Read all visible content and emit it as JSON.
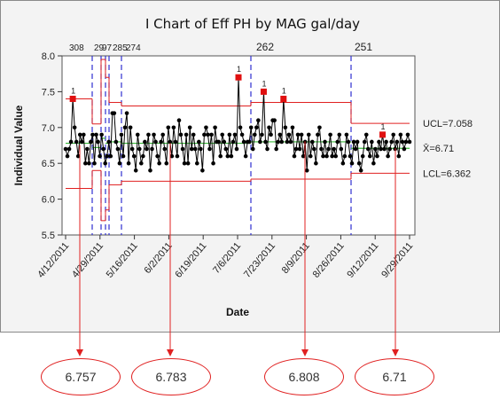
{
  "chart_data": {
    "type": "line",
    "title": "I Chart of Eff PH by MAG gal/day",
    "xlabel": "Date",
    "ylabel": "Individual Value",
    "ylim": [
      5.5,
      8.0
    ],
    "yticks": [
      "5.5",
      "6.0",
      "6.5",
      "7.0",
      "7.5",
      "8.0"
    ],
    "xticks": [
      "4/12/2011",
      "4/29/2011",
      "5/16/2011",
      "6/2/2011",
      "6/19/2011",
      "7/6/2011",
      "7/23/2011",
      "8/9/2011",
      "8/26/2011",
      "9/12/2011",
      "9/29/2011"
    ],
    "stage_labels": [
      "308",
      "29",
      "97",
      "285",
      "274",
      "262",
      "251"
    ],
    "grid": false,
    "center_line": "X̄=6.71",
    "ucl": "UCL=7.058",
    "lcl": "LCL=6.362",
    "flag": "1",
    "series": [
      {
        "values": [
          6.7,
          6.6,
          6.7,
          6.8,
          7.4,
          7.0,
          6.8,
          6.6,
          6.9,
          6.8,
          6.9,
          6.5,
          6.7,
          6.5,
          6.8,
          6.9,
          6.5,
          6.9,
          6.8,
          6.6,
          6.9,
          6.7,
          6.5,
          6.6,
          6.8,
          6.6,
          7.2,
          7.2,
          6.8,
          6.7,
          6.5,
          6.9,
          6.6,
          7.0,
          7.2,
          6.5,
          7.0,
          6.7,
          6.6,
          6.4,
          6.9,
          6.7,
          6.5,
          6.6,
          6.8,
          6.7,
          6.9,
          6.4,
          6.7,
          6.9,
          6.8,
          6.6,
          6.5,
          6.8,
          6.9,
          6.7,
          6.5,
          7.0,
          6.8,
          6.6,
          7.0,
          6.8,
          6.6,
          7.1,
          6.9,
          6.7,
          6.5,
          6.9,
          6.5,
          7.0,
          6.7,
          6.9,
          6.7,
          6.5,
          6.8,
          6.7,
          6.4,
          6.9,
          7.0,
          6.9,
          6.7,
          6.9,
          6.5,
          7.0,
          6.8,
          6.8,
          6.6,
          6.9,
          6.8,
          6.7,
          6.6,
          6.9,
          6.6,
          6.8,
          6.9,
          6.7,
          7.7,
          7.0,
          6.9,
          6.8,
          6.6,
          6.8,
          6.8,
          7.0,
          6.7,
          6.9,
          7.0,
          7.1,
          6.8,
          6.9,
          7.5,
          6.8,
          6.7,
          7.0,
          6.9,
          7.1,
          7.1,
          6.7,
          6.8,
          6.9,
          6.8,
          7.4,
          7.0,
          6.8,
          6.9,
          6.8,
          7.0,
          6.6,
          6.7,
          6.9,
          6.7,
          6.9,
          6.6,
          6.8,
          6.4,
          6.9,
          6.6,
          6.8,
          6.7,
          6.5,
          6.9,
          7.0,
          6.7,
          6.6,
          6.8,
          6.6,
          6.7,
          6.9,
          6.6,
          6.7,
          6.6,
          6.8,
          6.9,
          6.7,
          6.5,
          6.6,
          6.9,
          6.8,
          6.6,
          6.5,
          6.8,
          6.7,
          6.8,
          6.5,
          6.4,
          6.6,
          6.8,
          6.9,
          6.7,
          6.6,
          6.8,
          6.5,
          6.7,
          6.6,
          6.8,
          6.7,
          6.9,
          6.7,
          6.8,
          6.6,
          6.7,
          6.8,
          6.9,
          6.7,
          6.8,
          6.6,
          6.9,
          6.8,
          6.7,
          6.8,
          6.9,
          6.8
        ]
      }
    ],
    "callouts": [
      "6.757",
      "6.783",
      "6.808",
      "6.71"
    ]
  },
  "colors": {
    "series": "#000000",
    "flagged": "#e01010",
    "limit_line": "#e02020",
    "center_line": "#3ab83a",
    "stage_line": "#3030d0",
    "callout_border": "#e02020",
    "frame_bg": "#f3f3f3"
  }
}
